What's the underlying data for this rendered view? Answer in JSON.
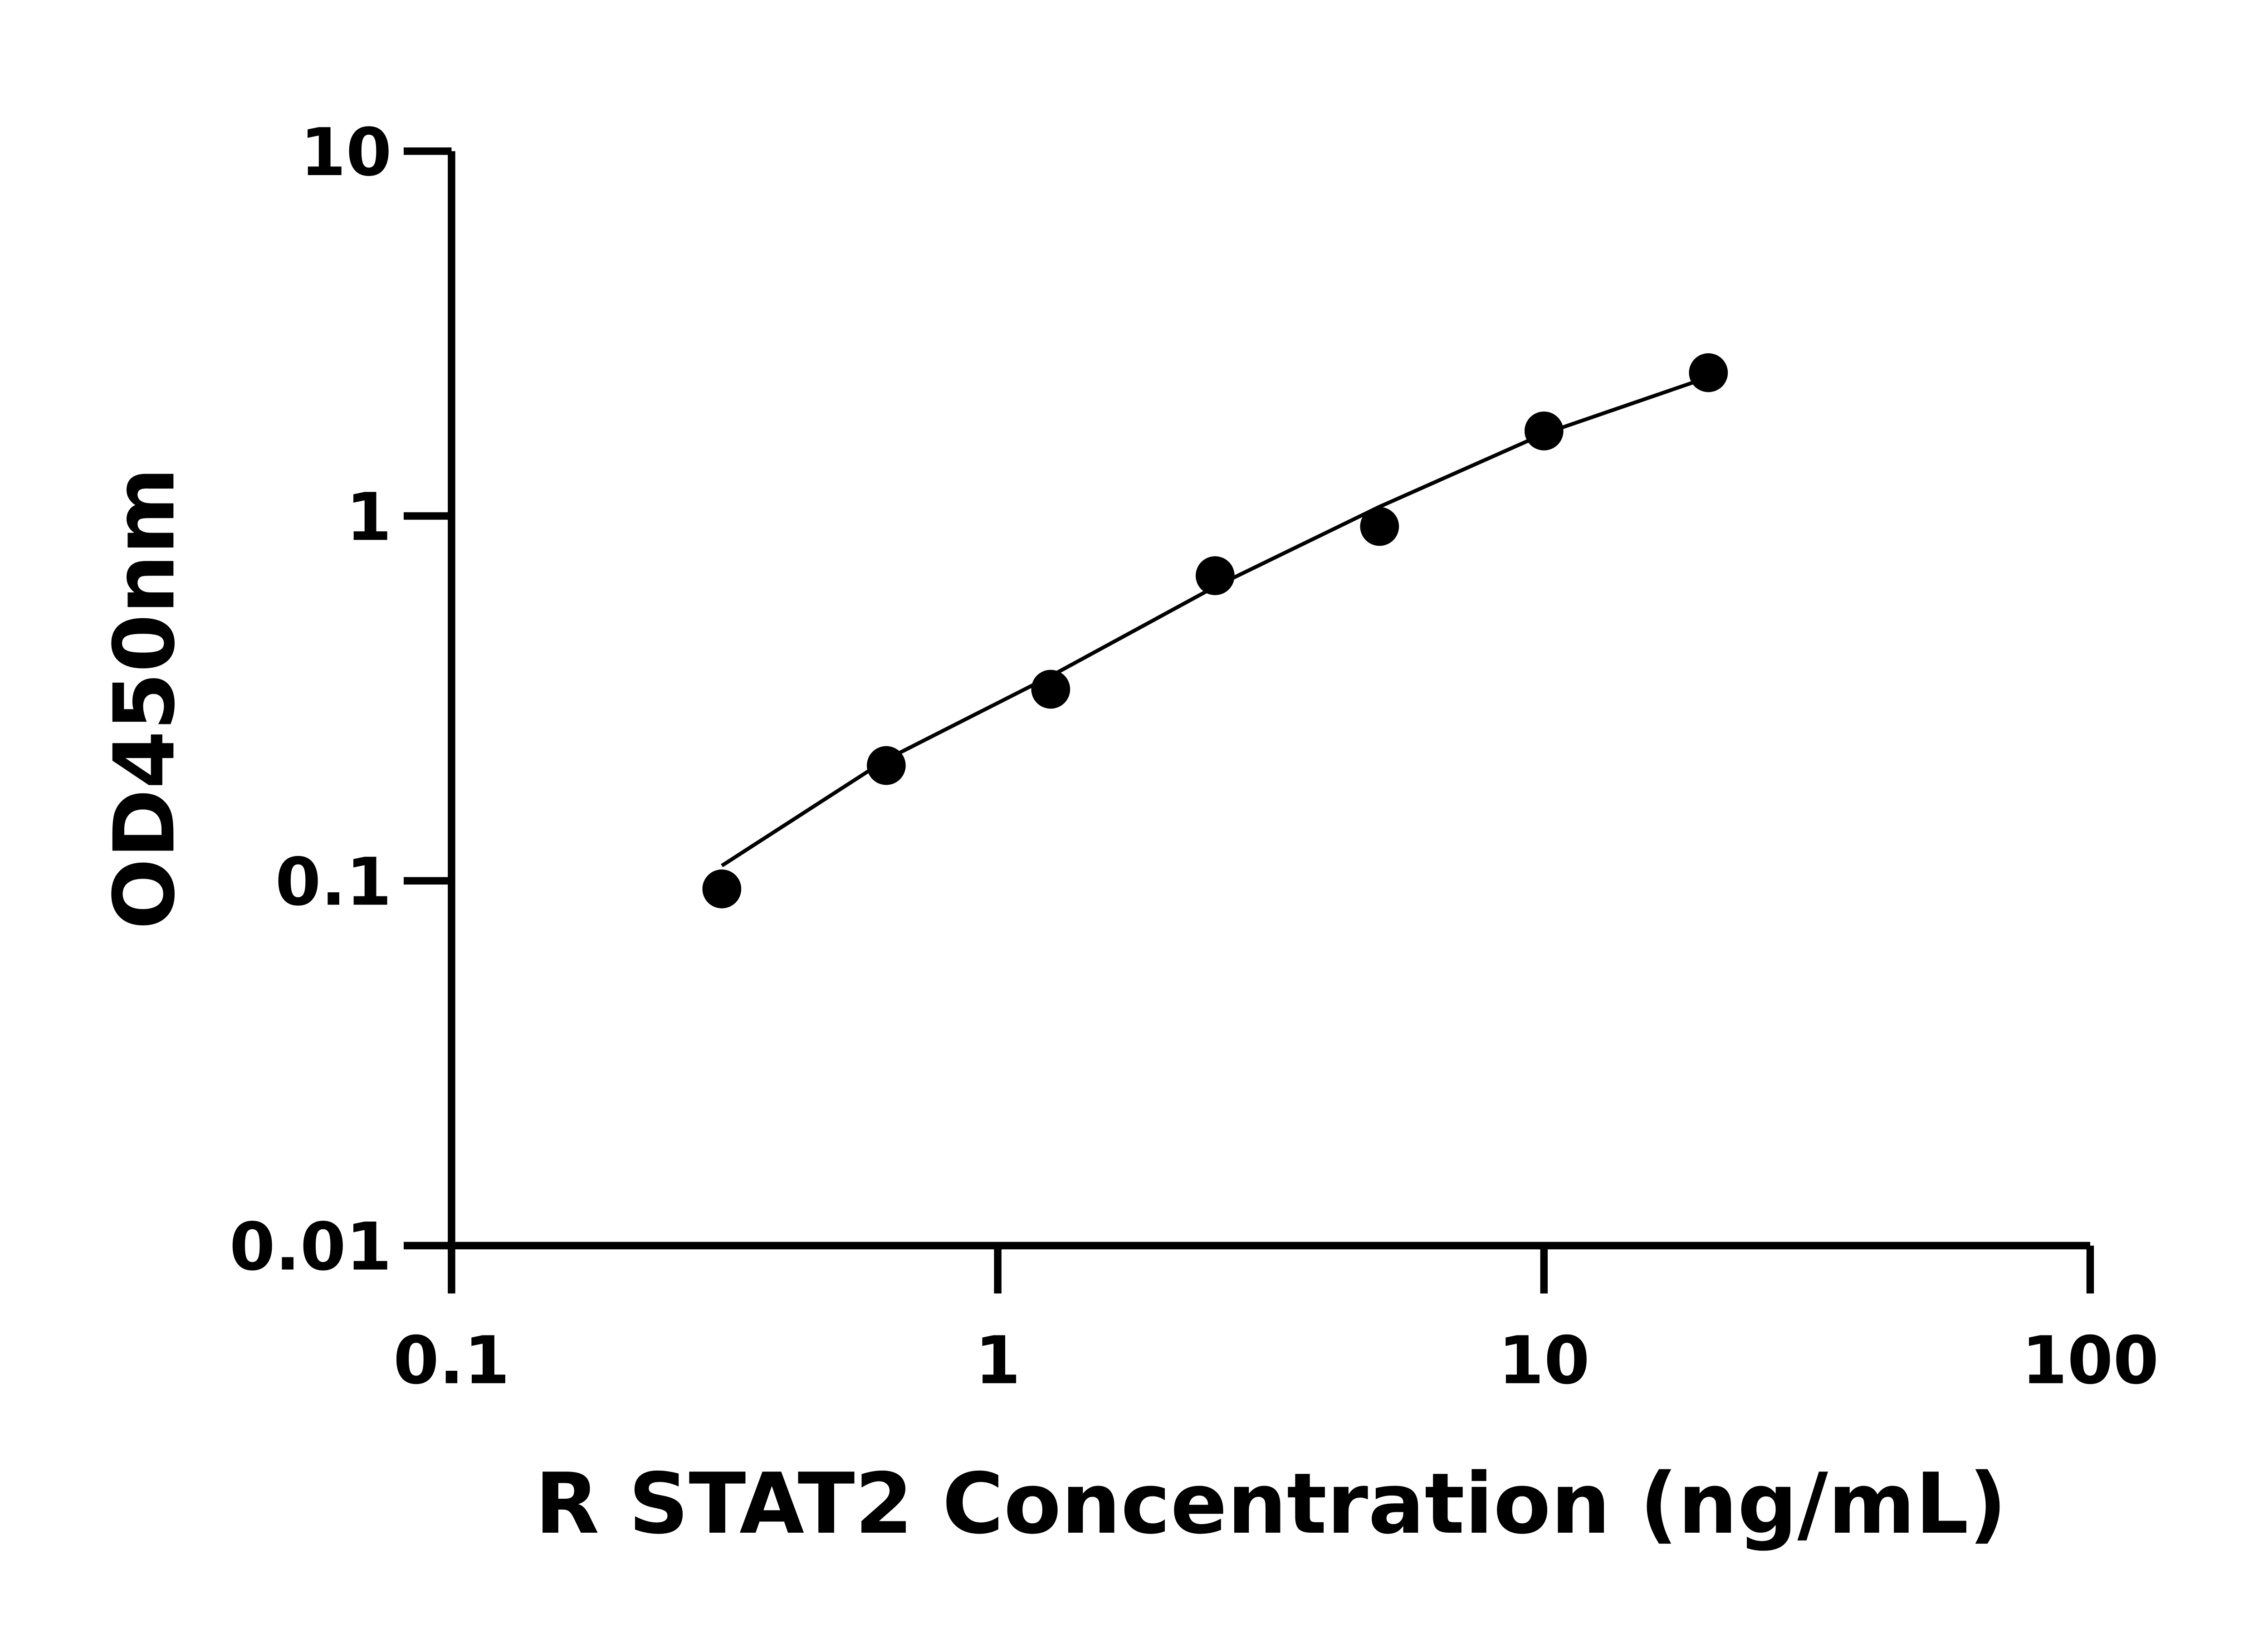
{
  "chart_data": {
    "type": "scatter",
    "xlabel": "R STAT2 Concentration (ng/mL)",
    "ylabel": "OD450nm",
    "xscale": "log",
    "yscale": "log",
    "xlim": [
      0.1,
      100
    ],
    "ylim": [
      0.01,
      10
    ],
    "xticks": [
      0.1,
      1,
      10,
      100
    ],
    "yticks": [
      0.01,
      0.1,
      1,
      10
    ],
    "grid": false,
    "series": [
      {
        "color": "#000000",
        "mode": "markers",
        "x": [
          0.3125,
          0.625,
          1.25,
          2.5,
          5,
          10,
          20
        ],
        "values": [
          0.095,
          0.207,
          0.335,
          0.686,
          0.936,
          1.71,
          2.47
        ]
      },
      {
        "color": "#000000",
        "mode": "line",
        "x": [
          0.3125,
          0.625,
          1.25,
          2.5,
          5,
          10,
          20
        ],
        "values": [
          0.11,
          0.215,
          0.364,
          0.64,
          1.06,
          1.68,
          2.4
        ]
      }
    ]
  }
}
